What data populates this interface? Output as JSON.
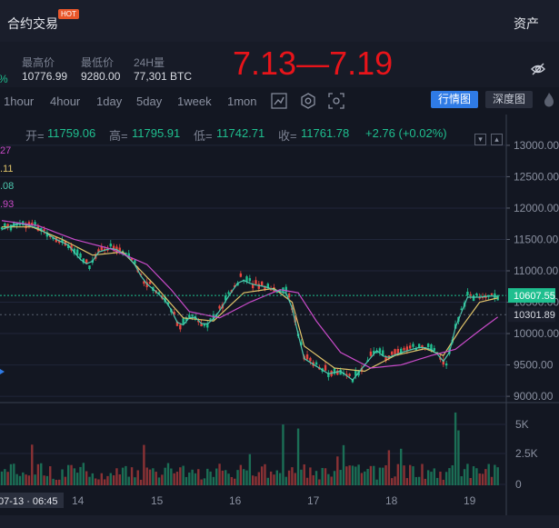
{
  "header": {
    "title": "合约交易",
    "hot_badge": "HOT",
    "assets_label": "资产"
  },
  "stats": {
    "change_fragment": "%",
    "high": {
      "label": "最高价",
      "value": "10776.99"
    },
    "low": {
      "label": "最低价",
      "value": "9280.00"
    },
    "volume": {
      "label": "24H量",
      "value": "77,301 BTC"
    }
  },
  "overlay_range": "7.13—7.19",
  "toolbar": {
    "timeframes": [
      "1hour",
      "4hour",
      "1day",
      "5day",
      "1week",
      "1mon"
    ],
    "tools": [
      "line-chart-icon",
      "indicator-icon",
      "screenshot-icon"
    ],
    "view_active": "行情图",
    "view_depth": "深度图"
  },
  "ohlc": {
    "open_label": "开=",
    "open": "11759.06",
    "high_label": "高=",
    "high": "11795.91",
    "low_label": "低=",
    "low": "11742.71",
    "close_label": "收=",
    "close": "11761.78",
    "change": "+2.76 (+0.02%)"
  },
  "ma_fragments": [
    "27",
    ".11",
    ".08",
    ".93"
  ],
  "chart_data": {
    "type": "candlestick",
    "symbol": "BTC",
    "y_ticks": [
      13000,
      12500,
      12000,
      11500,
      11000,
      10500,
      10000,
      9500,
      9000
    ],
    "ylim": [
      8900,
      13100
    ],
    "volume_ticks": [
      "5K",
      "2.5K",
      "0"
    ],
    "x_tick_labels": [
      "14",
      "15",
      "16",
      "17",
      "18",
      "19"
    ],
    "crosshair_time": "07-13 · 06:45",
    "current_price": "10607.55",
    "ref_price": "10301.89",
    "price_path": [
      [
        0,
        11680
      ],
      [
        6,
        11780
      ],
      [
        12,
        11700
      ],
      [
        18,
        11520
      ],
      [
        22,
        11430
      ],
      [
        26,
        11200
      ],
      [
        29,
        11100
      ],
      [
        32,
        11320
      ],
      [
        37,
        11390
      ],
      [
        43,
        11200
      ],
      [
        47,
        10850
      ],
      [
        51,
        10690
      ],
      [
        55,
        10500
      ],
      [
        59,
        10100
      ],
      [
        63,
        10330
      ],
      [
        67,
        10130
      ],
      [
        71,
        10300
      ],
      [
        75,
        10620
      ],
      [
        79,
        10890
      ],
      [
        83,
        10800
      ],
      [
        87,
        10770
      ],
      [
        91,
        10700
      ],
      [
        95,
        10650
      ],
      [
        97,
        10200
      ],
      [
        100,
        9620
      ],
      [
        104,
        9500
      ],
      [
        108,
        9380
      ],
      [
        112,
        9420
      ],
      [
        116,
        9280
      ],
      [
        120,
        9520
      ],
      [
        124,
        9750
      ],
      [
        127,
        9620
      ],
      [
        131,
        9700
      ],
      [
        135,
        9760
      ],
      [
        139,
        9810
      ],
      [
        143,
        9750
      ],
      [
        147,
        9520
      ],
      [
        150,
        10120
      ],
      [
        154,
        10600
      ],
      [
        158,
        10600
      ],
      [
        162,
        10620
      ],
      [
        165,
        10607
      ]
    ],
    "ma_short": [
      [
        0,
        11700
      ],
      [
        10,
        11700
      ],
      [
        20,
        11500
      ],
      [
        30,
        11250
      ],
      [
        40,
        11300
      ],
      [
        50,
        10800
      ],
      [
        60,
        10250
      ],
      [
        70,
        10200
      ],
      [
        80,
        10650
      ],
      [
        90,
        10720
      ],
      [
        96,
        10500
      ],
      [
        100,
        9800
      ],
      [
        110,
        9450
      ],
      [
        120,
        9400
      ],
      [
        130,
        9650
      ],
      [
        140,
        9760
      ],
      [
        146,
        9650
      ],
      [
        152,
        10100
      ],
      [
        158,
        10500
      ],
      [
        165,
        10580
      ]
    ],
    "ma_long": [
      [
        0,
        11800
      ],
      [
        12,
        11720
      ],
      [
        24,
        11500
      ],
      [
        36,
        11350
      ],
      [
        48,
        11100
      ],
      [
        56,
        10700
      ],
      [
        62,
        10350
      ],
      [
        72,
        10250
      ],
      [
        82,
        10500
      ],
      [
        92,
        10700
      ],
      [
        98,
        10650
      ],
      [
        104,
        10200
      ],
      [
        112,
        9700
      ],
      [
        122,
        9450
      ],
      [
        132,
        9500
      ],
      [
        142,
        9650
      ],
      [
        150,
        9750
      ],
      [
        158,
        10050
      ],
      [
        165,
        10300
      ]
    ]
  },
  "colors": {
    "up": "#1fbf8f",
    "down": "#e8463f",
    "ma_short": "#e0c46a",
    "ma_mid": "#4ec9b0",
    "ma_long": "#c94bc9",
    "accent": "#2f7be6"
  }
}
